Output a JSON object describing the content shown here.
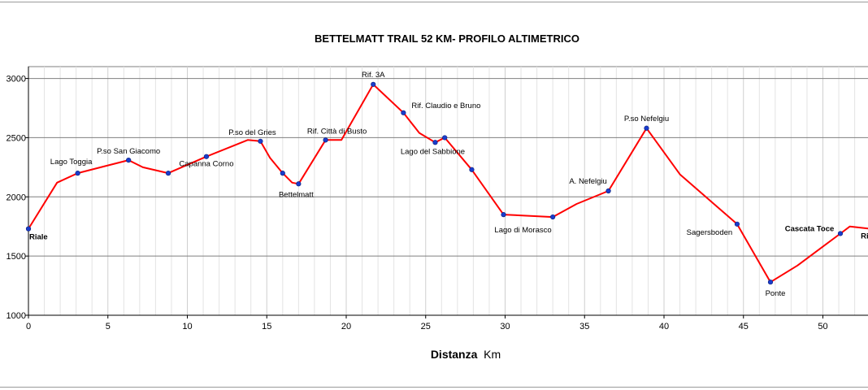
{
  "chart_data": {
    "type": "line",
    "title": "BETTELMATT TRAIL 52 KM- PROFILO ALTIMETRICO",
    "xlabel": "Distanza",
    "xlabel_unit": "Km",
    "ylabel": "",
    "xlim": [
      0,
      53
    ],
    "ylim": [
      1000,
      3100
    ],
    "x_ticks": [
      "0",
      "5",
      "10",
      "15",
      "20",
      "25",
      "30",
      "35",
      "40",
      "45",
      "50"
    ],
    "y_ticks": [
      "1000",
      "1500",
      "2000",
      "2500",
      "3000"
    ],
    "grid": true,
    "line_color": "#ff0000",
    "marker_color": "#1a3ccc",
    "profile": {
      "x": [
        0,
        1.8,
        3.1,
        6.3,
        7.2,
        8.8,
        11.2,
        13.8,
        14.6,
        15.2,
        16.0,
        16.6,
        17.0,
        18.7,
        19.7,
        21.7,
        23.6,
        24.6,
        25.6,
        26.2,
        27.9,
        29.9,
        33.0,
        34.5,
        36.5,
        38.9,
        41.0,
        44.6,
        46.7,
        48.4,
        51.1,
        51.7,
        53.0
      ],
      "y": [
        1730,
        2120,
        2200,
        2310,
        2250,
        2200,
        2340,
        2480,
        2470,
        2330,
        2200,
        2120,
        2110,
        2480,
        2480,
        2950,
        2710,
        2540,
        2460,
        2500,
        2230,
        1850,
        1830,
        1940,
        2050,
        2580,
        2190,
        1770,
        1280,
        1420,
        1690,
        1750,
        1730
      ]
    },
    "waypoints": [
      {
        "name": "Riale",
        "x": 0,
        "y": 1730,
        "bold": true
      },
      {
        "name": "Lago Toggia",
        "x": 3.1,
        "y": 2200,
        "bold": false
      },
      {
        "name": "P.so San Giacomo",
        "x": 6.3,
        "y": 2310,
        "bold": false
      },
      {
        "name": "",
        "x": 8.8,
        "y": 2200,
        "bold": false
      },
      {
        "name": "Capanna Corno",
        "x": 11.2,
        "y": 2340,
        "bold": false
      },
      {
        "name": "P.so del Gries",
        "x": 14.6,
        "y": 2470,
        "bold": false
      },
      {
        "name": "",
        "x": 16.0,
        "y": 2200,
        "bold": false
      },
      {
        "name": "Bettelmatt",
        "x": 17.0,
        "y": 2110,
        "bold": false
      },
      {
        "name": "Rif. Città di Busto",
        "x": 18.7,
        "y": 2480,
        "bold": false
      },
      {
        "name": "Rif. 3A",
        "x": 21.7,
        "y": 2950,
        "bold": false
      },
      {
        "name": "Rif. Claudio e Bruno",
        "x": 23.6,
        "y": 2710,
        "bold": false
      },
      {
        "name": "Lago del Sabbione",
        "x": 25.6,
        "y": 2460,
        "bold": false
      },
      {
        "name": "",
        "x": 26.2,
        "y": 2500,
        "bold": false
      },
      {
        "name": "",
        "x": 27.9,
        "y": 2230,
        "bold": false
      },
      {
        "name": "Lago di Morasco",
        "x": 29.9,
        "y": 1850,
        "bold": false
      },
      {
        "name": "",
        "x": 33.0,
        "y": 1830,
        "bold": false
      },
      {
        "name": "A. Nefelgiu",
        "x": 36.5,
        "y": 2050,
        "bold": false
      },
      {
        "name": "P.so Nefelgiu",
        "x": 38.9,
        "y": 2580,
        "bold": false
      },
      {
        "name": "Sagersboden",
        "x": 44.6,
        "y": 1770,
        "bold": false
      },
      {
        "name": "Ponte",
        "x": 46.7,
        "y": 1280,
        "bold": false
      },
      {
        "name": "Cascata Toce",
        "x": 51.1,
        "y": 1690,
        "bold": true
      },
      {
        "name": "Ri",
        "x": 53.0,
        "y": 1730,
        "bold": true
      }
    ]
  }
}
